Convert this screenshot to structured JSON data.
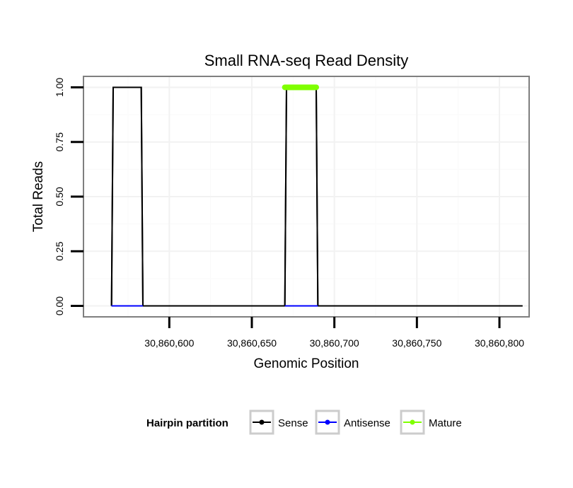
{
  "chart_data": {
    "type": "line",
    "title": "Small RNA-seq Read Density",
    "xlabel": "Genomic Position",
    "ylabel": "Total Reads",
    "xlim": [
      30860548,
      30860818
    ],
    "ylim": [
      -0.05,
      1.05
    ],
    "x_ticks": [
      30860600,
      30860650,
      30860700,
      30860750,
      30860800
    ],
    "x_tick_labels": [
      "30,860,600",
      "30,860,650",
      "30,860,700",
      "30,860,750",
      "30,860,800"
    ],
    "y_ticks": [
      0,
      0.25,
      0.5,
      0.75,
      1.0
    ],
    "y_tick_labels": [
      "0.00",
      "0.25",
      "0.50",
      "0.75",
      "1.00"
    ],
    "grid": true,
    "legend_placement": "bottom",
    "legend_title": "Hairpin partition",
    "series": [
      {
        "name": "Sense",
        "color": "#000000",
        "x": [
          30860565,
          30860566,
          30860583,
          30860584,
          30860670,
          30860671,
          30860689,
          30860690,
          30860814
        ],
        "values": [
          0,
          1,
          1,
          0,
          0,
          1,
          1,
          0,
          0
        ]
      },
      {
        "name": "Antisense",
        "color": "#0000ff",
        "x": [
          30860565,
          30860584,
          30860670,
          30860690
        ],
        "values": [
          0,
          0,
          0,
          0
        ]
      },
      {
        "name": "Mature",
        "color": "#7fff00",
        "x": [
          30860670,
          30860689
        ],
        "values": [
          1,
          1
        ]
      }
    ]
  }
}
